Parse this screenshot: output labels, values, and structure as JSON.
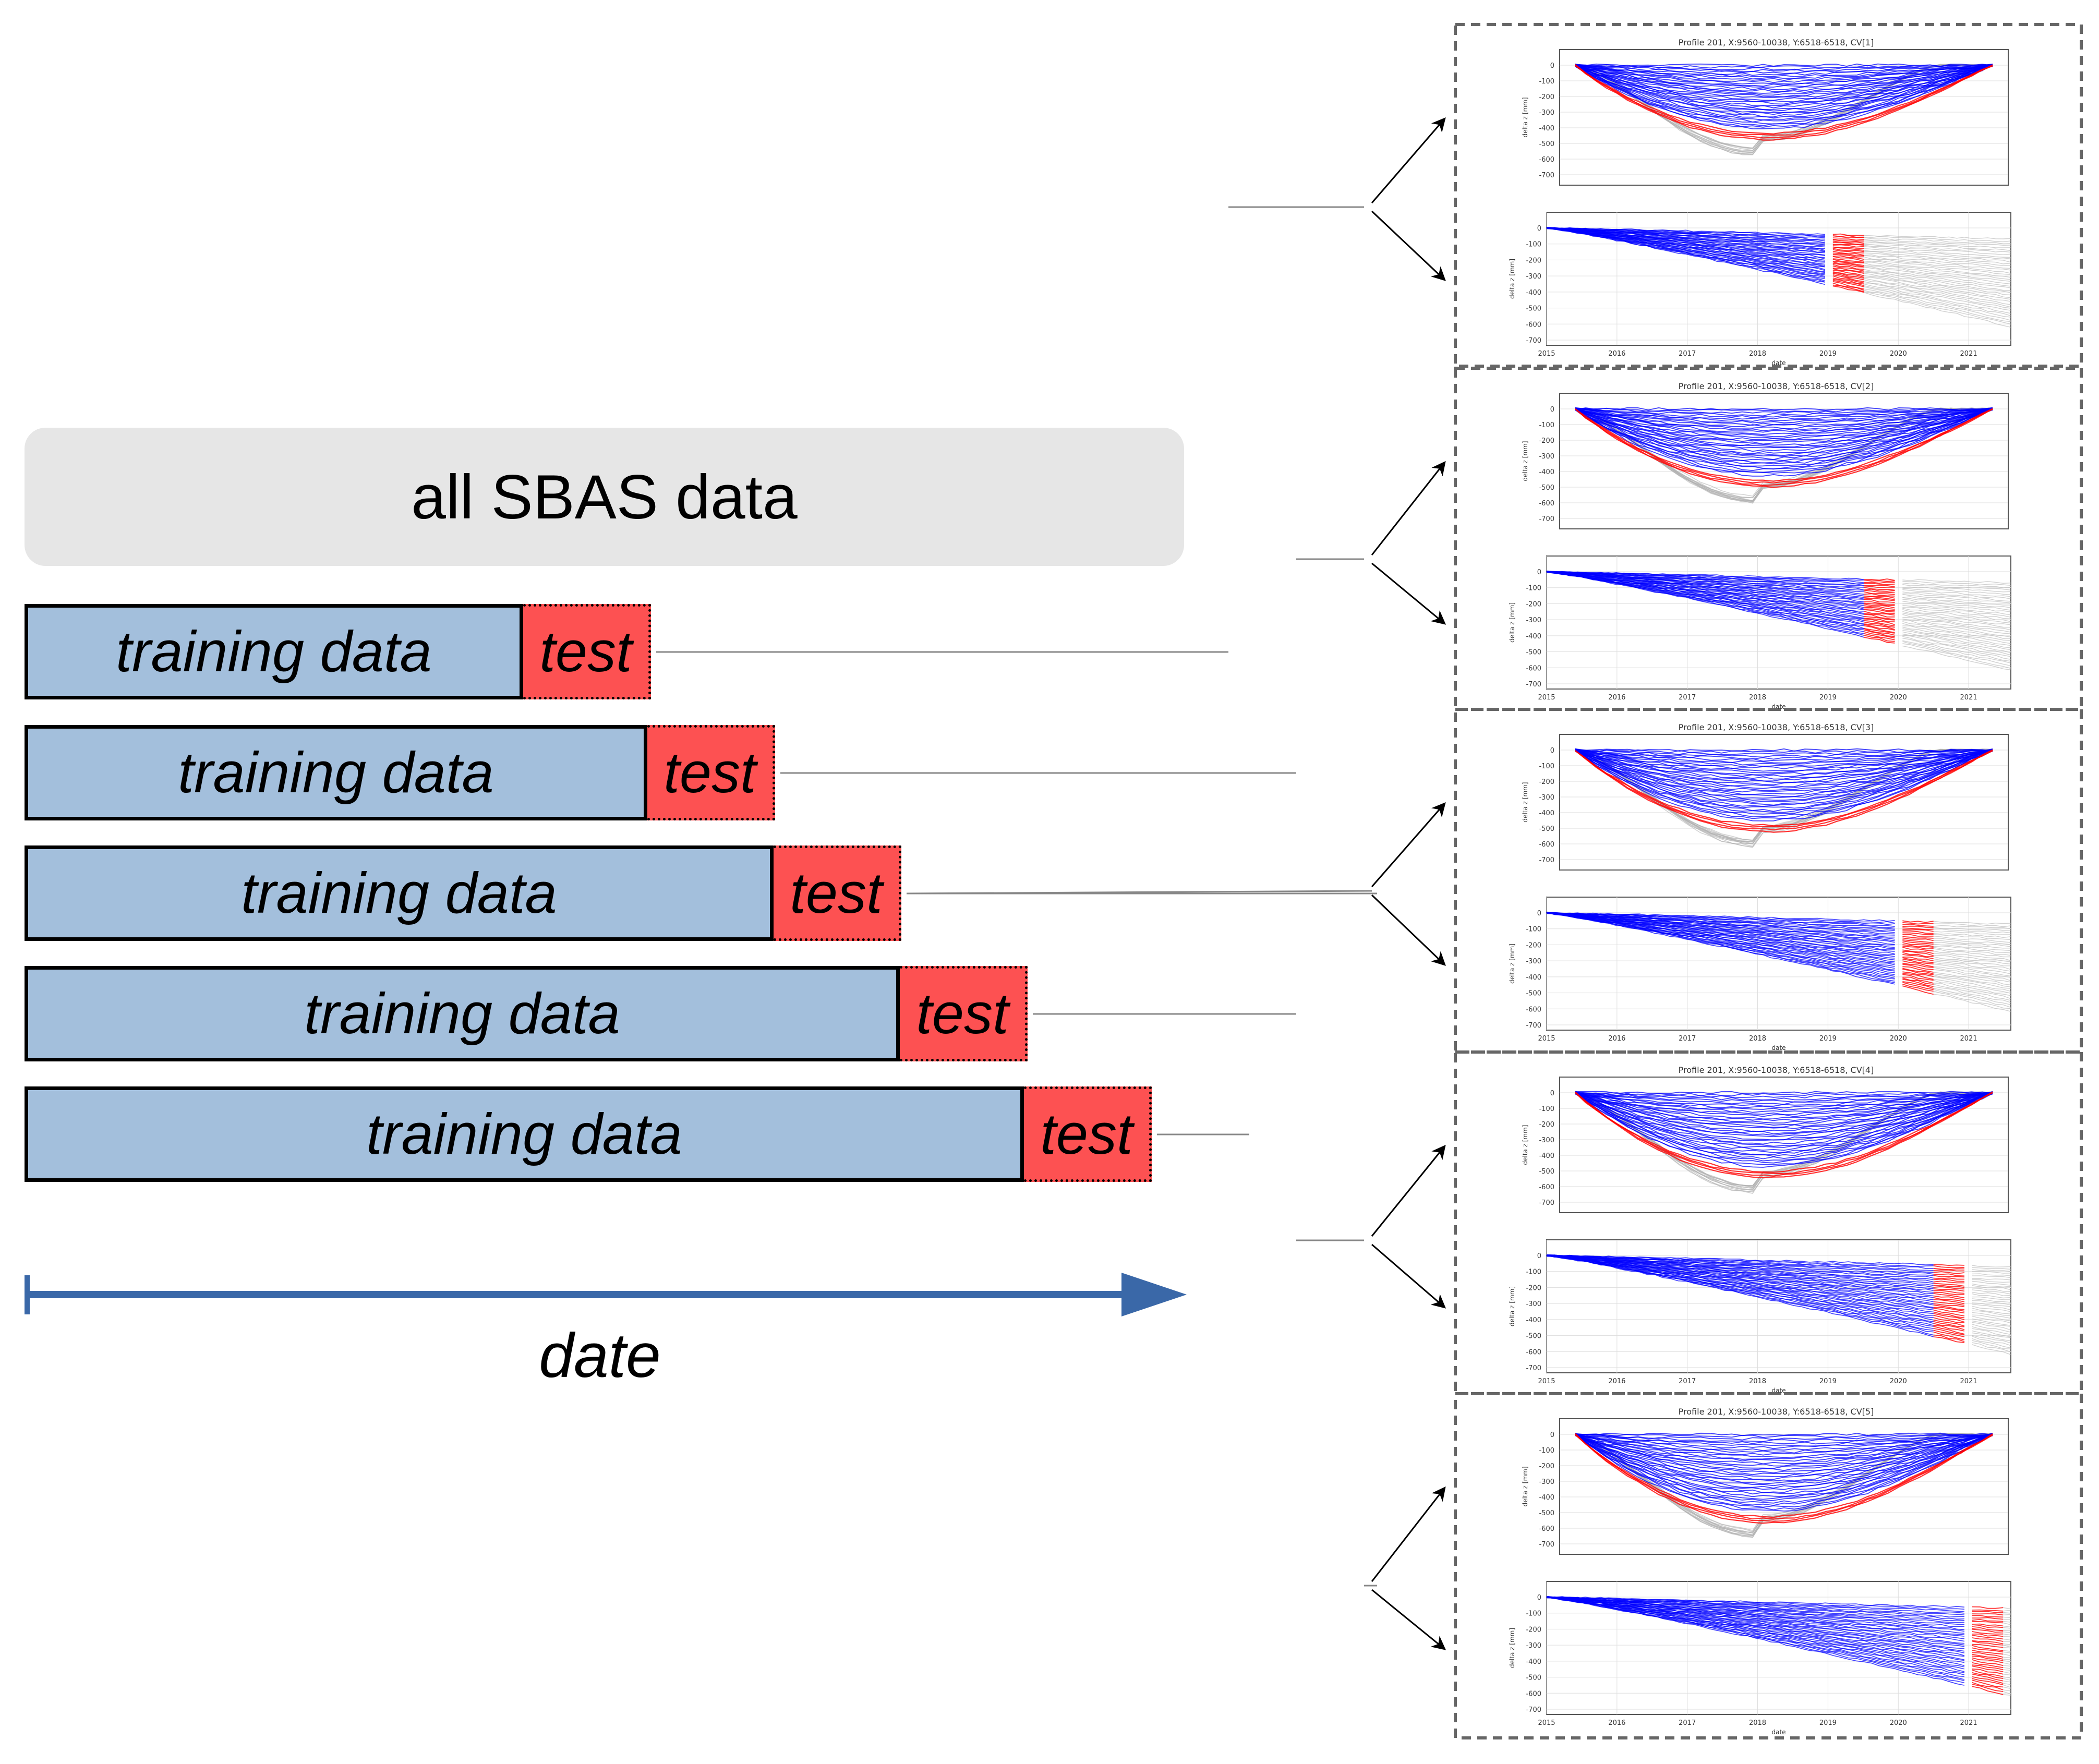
{
  "all_data_label": "all SBAS data",
  "training_label": "training data",
  "test_label": "test",
  "axis_label": "date",
  "folds": [
    {
      "id": 1,
      "train_fraction": 0.43
    },
    {
      "id": 2,
      "train_fraction": 0.537
    },
    {
      "id": 3,
      "train_fraction": 0.646
    },
    {
      "id": 4,
      "train_fraction": 0.755
    },
    {
      "id": 5,
      "train_fraction": 0.862
    }
  ],
  "panels": [
    {
      "title": "Profile 201,  X:9560-10038,  Y:6518-6518, CV[1]",
      "top_yticks": [
        "0",
        "-100",
        "-200",
        "-300",
        "-400",
        "-500",
        "-600",
        "-700"
      ],
      "bottom_yticks": [
        "0",
        "-100",
        "-200",
        "-300",
        "-400",
        "-500",
        "-600",
        "-700"
      ],
      "xticks": [
        "2015",
        "2016",
        "2017",
        "2018",
        "2019",
        "2020",
        "2021"
      ],
      "test_window": [
        2019.0,
        2019.5
      ]
    },
    {
      "title": "Profile 201,  X:9560-10038,  Y:6518-6518, CV[2]",
      "top_yticks": [
        "0",
        "-100",
        "-200",
        "-300",
        "-400",
        "-500",
        "-600",
        "-700"
      ],
      "bottom_yticks": [
        "0",
        "-100",
        "-200",
        "-300",
        "-400",
        "-500",
        "-600",
        "-700"
      ],
      "xticks": [
        "2015",
        "2016",
        "2017",
        "2018",
        "2019",
        "2020",
        "2021"
      ],
      "test_window": [
        2019.5,
        2020.0
      ]
    },
    {
      "title": "Profile 201,  X:9560-10038,  Y:6518-6518, CV[3]",
      "top_yticks": [
        "0",
        "-100",
        "-200",
        "-300",
        "-400",
        "-500",
        "-600",
        "-700"
      ],
      "bottom_yticks": [
        "0",
        "-100",
        "-200",
        "-300",
        "-400",
        "-500",
        "-600",
        "-700"
      ],
      "xticks": [
        "2015",
        "2016",
        "2017",
        "2018",
        "2019",
        "2020",
        "2021"
      ],
      "test_window": [
        2020.0,
        2020.5
      ]
    },
    {
      "title": "Profile 201,  X:9560-10038,  Y:6518-6518, CV[4]",
      "top_yticks": [
        "0",
        "-100",
        "-200",
        "-300",
        "-400",
        "-500",
        "-600",
        "-700"
      ],
      "bottom_yticks": [
        "0",
        "-100",
        "-200",
        "-300",
        "-400",
        "-500",
        "-600",
        "-700"
      ],
      "xticks": [
        "2015",
        "2016",
        "2017",
        "2018",
        "2019",
        "2020",
        "2021"
      ],
      "test_window": [
        2020.5,
        2021.0
      ]
    },
    {
      "title": "Profile 201,  X:9560-10038,  Y:6518-6518, CV[5]",
      "top_yticks": [
        "0",
        "-100",
        "-200",
        "-300",
        "-400",
        "-500",
        "-600",
        "-700"
      ],
      "bottom_yticks": [
        "0",
        "-100",
        "-200",
        "-300",
        "-400",
        "-500",
        "-600",
        "-700"
      ],
      "xticks": [
        "2015",
        "2016",
        "2017",
        "2018",
        "2019",
        "2020",
        "2021"
      ],
      "test_window": [
        2021.0,
        2021.5
      ]
    }
  ],
  "colors": {
    "train": "#a3bfdc",
    "test": "#fd5152",
    "axis_arrow": "#3a68a8",
    "blue_series": "#0000ff",
    "red_series": "#ff0000",
    "gray_series": "#b0b0b0"
  }
}
